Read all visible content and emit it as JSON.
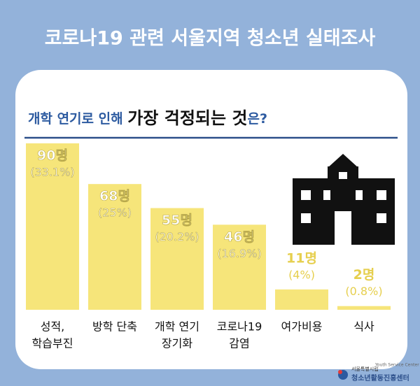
{
  "chart_data": {
    "type": "bar",
    "title": "코로나19 관련 서울지역 청소년 실태조사",
    "question": [
      "개학 연기로 인해 ",
      "가장 걱정되는 것",
      "은?"
    ],
    "categories": [
      [
        "성적,",
        "학습부진"
      ],
      [
        "방학 단축"
      ],
      [
        "개학 연기",
        "장기화"
      ],
      [
        "코로나19",
        "감염"
      ],
      [
        "여가비용"
      ],
      [
        "식사"
      ]
    ],
    "values": [
      90,
      68,
      55,
      46,
      11,
      2
    ],
    "value_labels": [
      "90명",
      "68명",
      "55명",
      "46명",
      "11명",
      "2명"
    ],
    "percents": [
      33.1,
      25,
      20.2,
      16.9,
      4,
      0.8
    ],
    "percent_labels": [
      "(33.1%)",
      "(25%)",
      "(20.2%)",
      "(16.9%)",
      "(4%)",
      "(0.8%)"
    ],
    "color": "#f6e57a",
    "ylim": [
      0,
      90
    ],
    "footer": {
      "org": "서울특별시립",
      "english": "Youth Service Center",
      "name": "청소년활동진흥센터"
    }
  }
}
